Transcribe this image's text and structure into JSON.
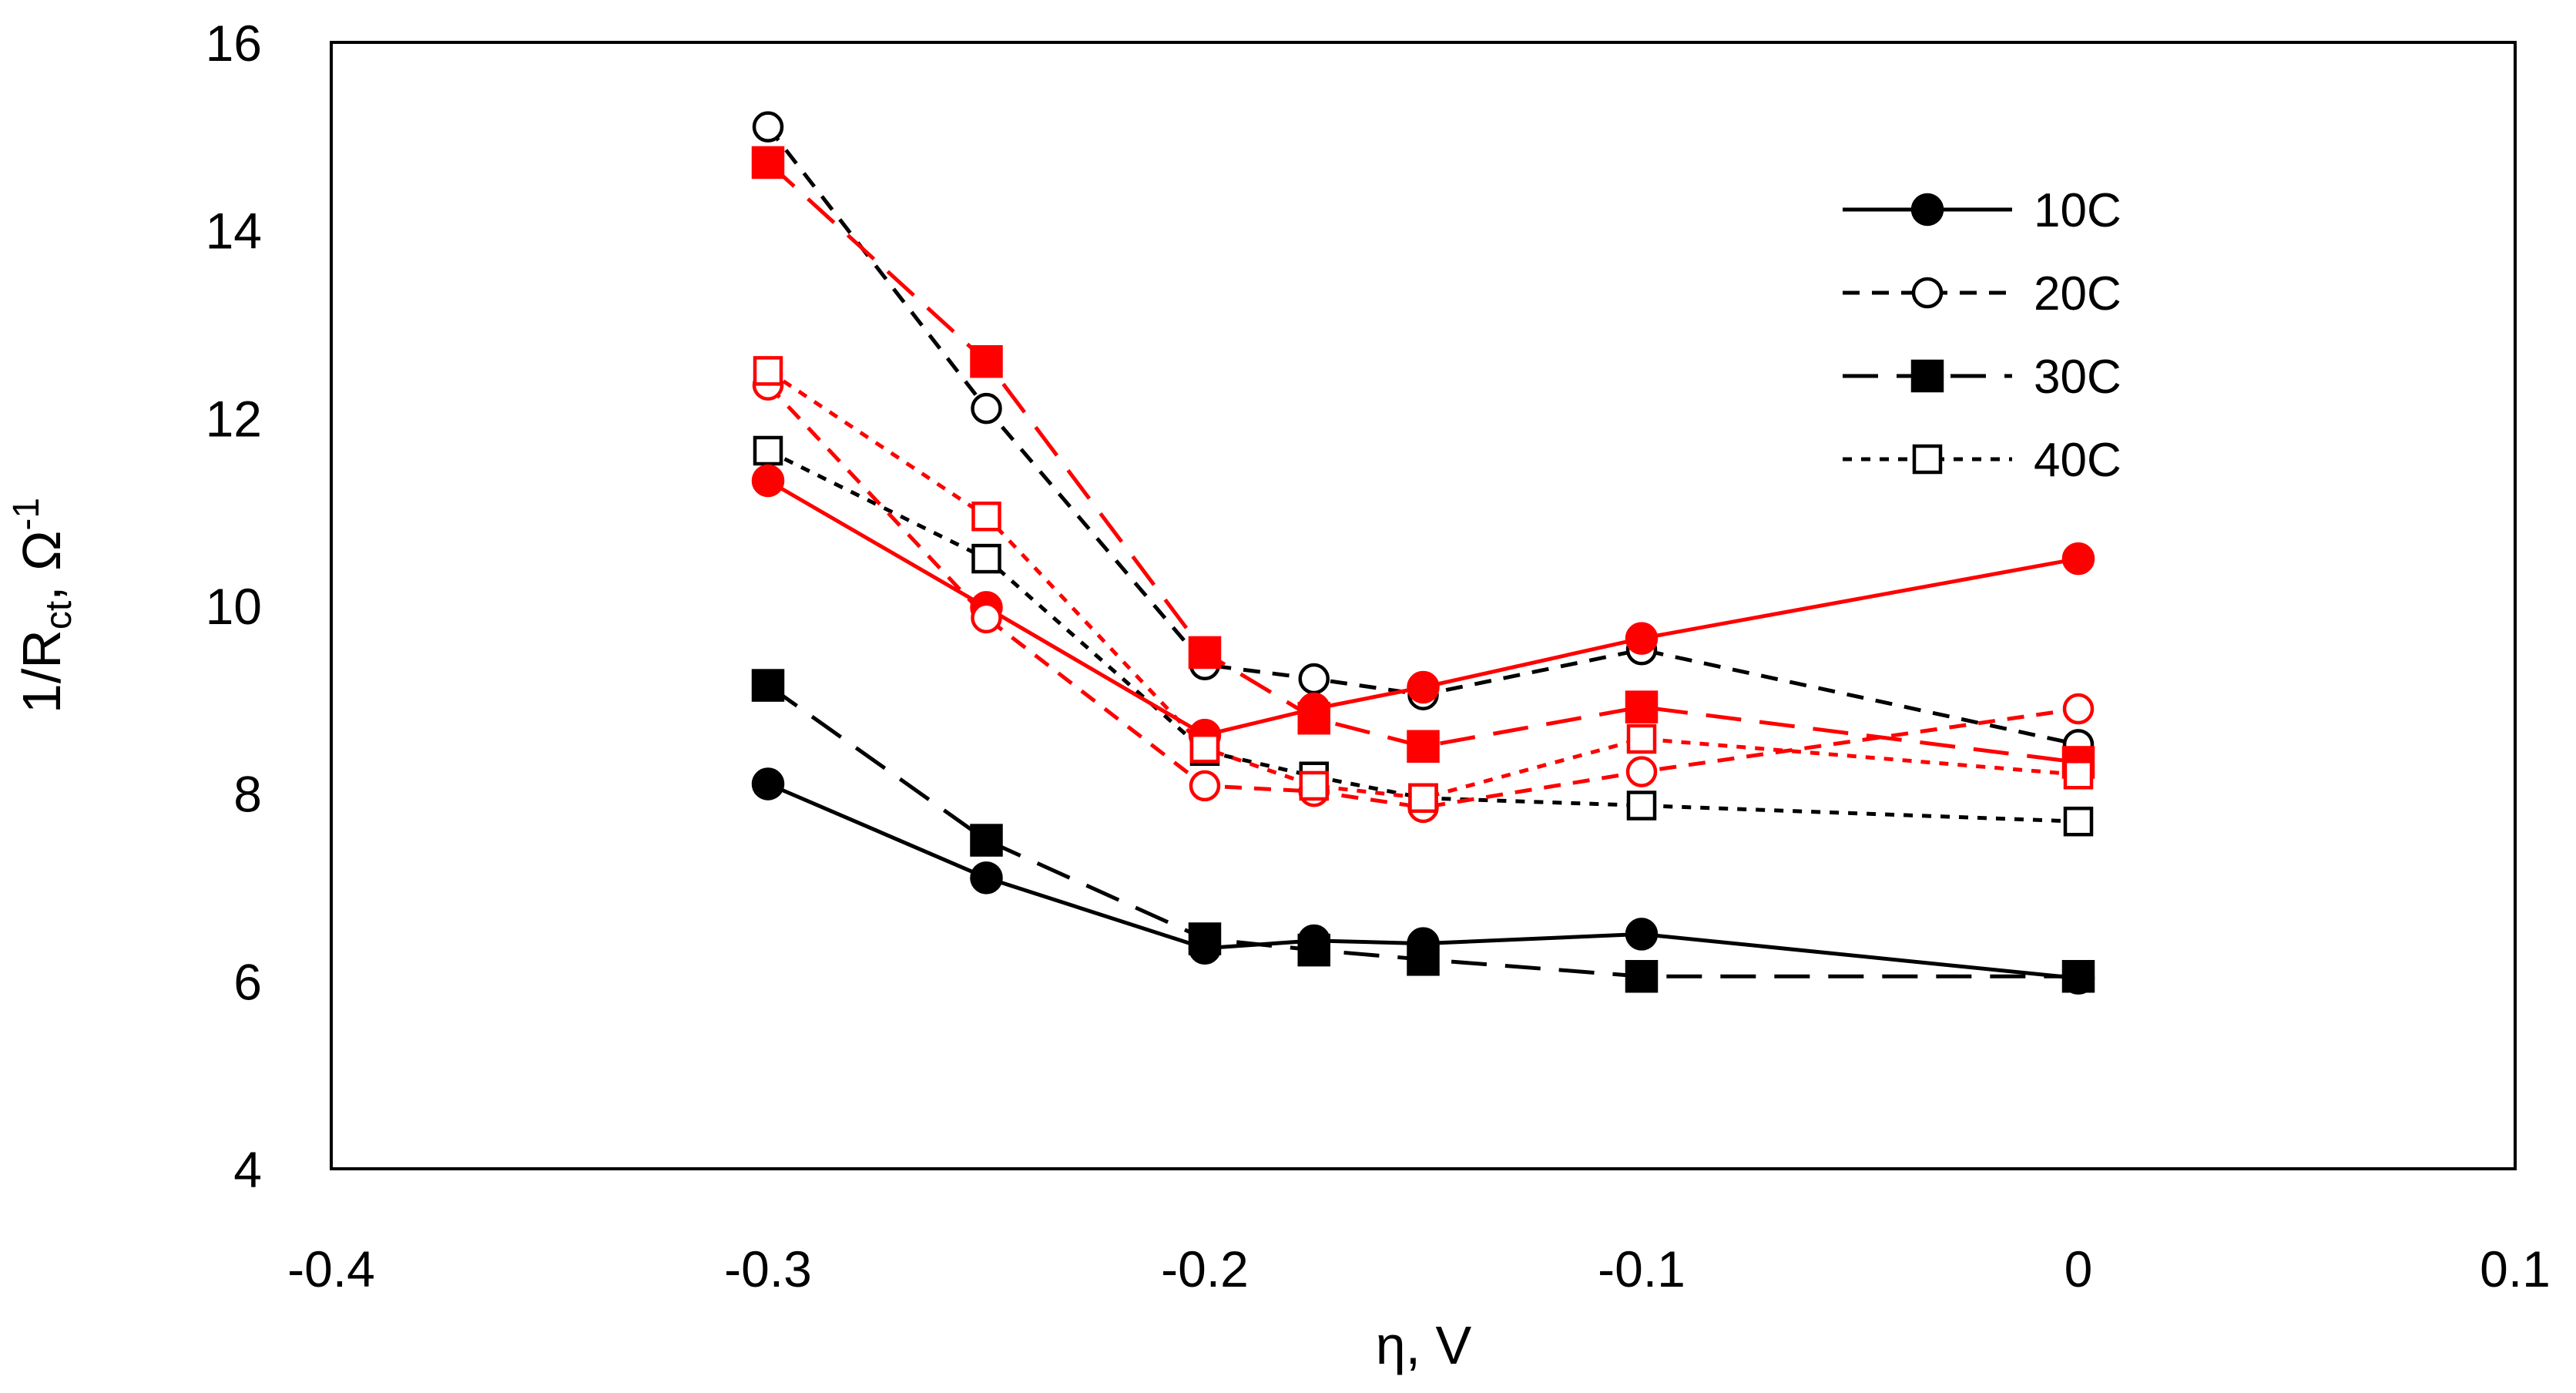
{
  "chart_data": {
    "type": "line",
    "title": "",
    "xlabel": "η, V",
    "ylabel": {
      "base": "1/R",
      "sub": "ct",
      "mid": ", Ω",
      "sup": "-1"
    },
    "xlim": [
      -0.4,
      0.1
    ],
    "ylim": [
      4,
      16
    ],
    "x_ticks": [
      -0.4,
      -0.3,
      -0.2,
      -0.1,
      0,
      0.1
    ],
    "x_tick_labels": [
      "-0.4",
      "-0.3",
      "-0.2",
      "-0.1",
      "0",
      "0.1"
    ],
    "y_ticks": [
      4,
      6,
      8,
      10,
      12,
      14,
      16
    ],
    "y_tick_labels": [
      "4",
      "6",
      "8",
      "10",
      "12",
      "14",
      "16"
    ],
    "grid": false,
    "legend_position": "top-right",
    "legend": [
      {
        "label": "10C",
        "marker": "circle",
        "filled": true,
        "dash": "solid"
      },
      {
        "label": "20C",
        "marker": "circle",
        "filled": false,
        "dash": "dash"
      },
      {
        "label": "30C",
        "marker": "square",
        "filled": true,
        "dash": "longdash"
      },
      {
        "label": "40C",
        "marker": "square",
        "filled": false,
        "dash": "dot"
      }
    ],
    "x": [
      -0.3,
      -0.25,
      -0.2,
      -0.175,
      -0.15,
      -0.1,
      0
    ],
    "series": [
      {
        "name": "10C black",
        "color": "#000000",
        "marker": "circle",
        "filled": true,
        "dash": "solid",
        "values": [
          8.1,
          7.1,
          6.35,
          6.43,
          6.4,
          6.5,
          6.03
        ]
      },
      {
        "name": "20C black",
        "color": "#000000",
        "marker": "circle",
        "filled": false,
        "dash": "dash",
        "values": [
          15.1,
          12.1,
          9.37,
          9.22,
          9.05,
          9.53,
          8.52
        ]
      },
      {
        "name": "30C black",
        "color": "#000000",
        "marker": "square",
        "filled": true,
        "dash": "longdash",
        "values": [
          9.15,
          7.5,
          6.45,
          6.33,
          6.23,
          6.05,
          6.05
        ]
      },
      {
        "name": "40C black",
        "color": "#000000",
        "marker": "square",
        "filled": false,
        "dash": "dot",
        "values": [
          11.65,
          10.5,
          8.45,
          8.18,
          7.95,
          7.87,
          7.7
        ]
      },
      {
        "name": "10C red",
        "color": "#ff0000",
        "marker": "circle",
        "filled": true,
        "dash": "solid",
        "values": [
          11.33,
          9.98,
          8.62,
          8.9,
          9.13,
          9.65,
          10.5
        ]
      },
      {
        "name": "20C red",
        "color": "#ff0000",
        "marker": "circle",
        "filled": false,
        "dash": "dash",
        "values": [
          12.35,
          9.87,
          8.08,
          8.02,
          7.85,
          8.23,
          8.9
        ]
      },
      {
        "name": "30C red",
        "color": "#ff0000",
        "marker": "square",
        "filled": true,
        "dash": "longdash",
        "values": [
          14.72,
          12.6,
          9.5,
          8.8,
          8.5,
          8.92,
          8.33
        ]
      },
      {
        "name": "40C red",
        "color": "#ff0000",
        "marker": "square",
        "filled": false,
        "dash": "dot",
        "values": [
          12.5,
          10.95,
          8.48,
          8.08,
          7.95,
          8.58,
          8.2
        ]
      }
    ]
  }
}
